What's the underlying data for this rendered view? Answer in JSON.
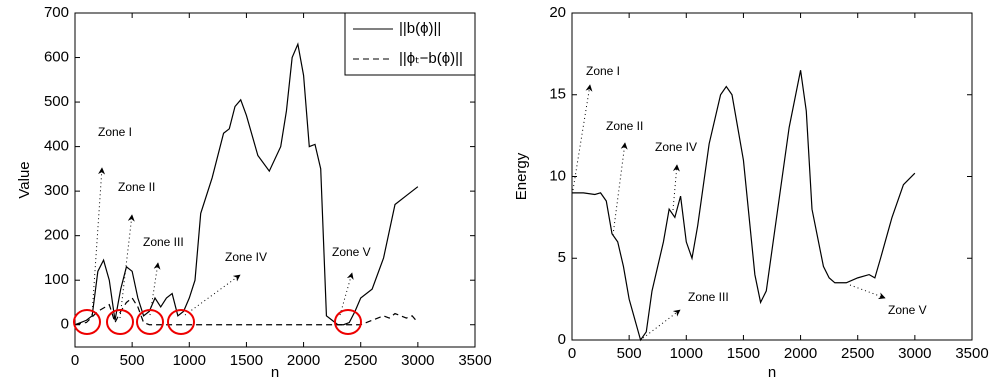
{
  "chart_data": [
    {
      "type": "line",
      "xlabel": "n",
      "ylabel": "Value",
      "xlim": [
        0,
        3500
      ],
      "xticks": [
        0,
        500,
        1000,
        1500,
        2000,
        2500,
        3000,
        3500
      ],
      "ylim": [
        -50,
        700
      ],
      "yticks": [
        0,
        100,
        200,
        300,
        400,
        500,
        600,
        700
      ],
      "legend": "upper right",
      "annotations": [
        "Zone I",
        "Zone II",
        "Zone III",
        "Zone IV",
        "Zone V"
      ],
      "series": [
        {
          "name": "||b(ϕ)||",
          "color": "#000000",
          "dash": "solid",
          "x": [
            0,
            50,
            100,
            150,
            200,
            250,
            300,
            350,
            400,
            450,
            500,
            550,
            600,
            650,
            700,
            750,
            800,
            850,
            900,
            950,
            1000,
            1050,
            1100,
            1200,
            1300,
            1350,
            1400,
            1450,
            1500,
            1600,
            1700,
            1800,
            1850,
            1900,
            1950,
            2000,
            2050,
            2100,
            2150,
            2200,
            2250,
            2300,
            2350,
            2400,
            2450,
            2500,
            2600,
            2700,
            2800,
            2900,
            3000
          ],
          "values": [
            0,
            5,
            10,
            20,
            120,
            145,
            100,
            10,
            80,
            130,
            120,
            60,
            20,
            30,
            60,
            40,
            60,
            70,
            20,
            30,
            60,
            100,
            250,
            330,
            430,
            440,
            490,
            505,
            470,
            380,
            345,
            400,
            480,
            600,
            630,
            560,
            400,
            405,
            350,
            20,
            10,
            0,
            0,
            5,
            30,
            60,
            80,
            150,
            270,
            290,
            310
          ]
        },
        {
          "name": "||ϕₜ−b(ϕ)||",
          "color": "#000000",
          "dash": "dashed",
          "x": [
            0,
            100,
            200,
            300,
            350,
            400,
            450,
            500,
            550,
            600,
            650,
            700,
            2400,
            2500,
            2600,
            2700,
            2750,
            2800,
            2900,
            2950,
            3000
          ],
          "values": [
            0,
            5,
            30,
            45,
            5,
            30,
            50,
            60,
            40,
            5,
            0,
            0,
            0,
            0,
            10,
            20,
            15,
            25,
            15,
            20,
            5
          ]
        }
      ]
    },
    {
      "type": "line",
      "xlabel": "n",
      "ylabel": "Energy",
      "xlim": [
        0,
        3500
      ],
      "xticks": [
        0,
        500,
        1000,
        1500,
        2000,
        2500,
        3000,
        3500
      ],
      "ylim": [
        0,
        20
      ],
      "yticks": [
        0,
        5,
        10,
        15,
        20
      ],
      "annotations": [
        "Zone I",
        "Zone II",
        "Zone IV",
        "Zone III",
        "Zone V"
      ],
      "series": [
        {
          "color": "#000000",
          "dash": "solid",
          "x": [
            0,
            100,
            200,
            250,
            300,
            350,
            400,
            450,
            500,
            600,
            650,
            700,
            800,
            850,
            900,
            950,
            1000,
            1050,
            1100,
            1200,
            1300,
            1350,
            1400,
            1500,
            1600,
            1650,
            1700,
            1800,
            1900,
            2000,
            2050,
            2100,
            2200,
            2250,
            2300,
            2400,
            2500,
            2600,
            2650,
            2700,
            2800,
            2900,
            3000
          ],
          "values": [
            9,
            9,
            8.9,
            9,
            8.5,
            6.5,
            6,
            4.5,
            2.5,
            0,
            0.5,
            3,
            6,
            8,
            7.5,
            8.8,
            6,
            5,
            7,
            12,
            15,
            15.5,
            15,
            11,
            4,
            2.3,
            3,
            8,
            13,
            16.5,
            14,
            8,
            4.5,
            3.8,
            3.5,
            3.5,
            3.8,
            4,
            3.8,
            5,
            7.5,
            9.5,
            10.2
          ]
        }
      ]
    }
  ]
}
